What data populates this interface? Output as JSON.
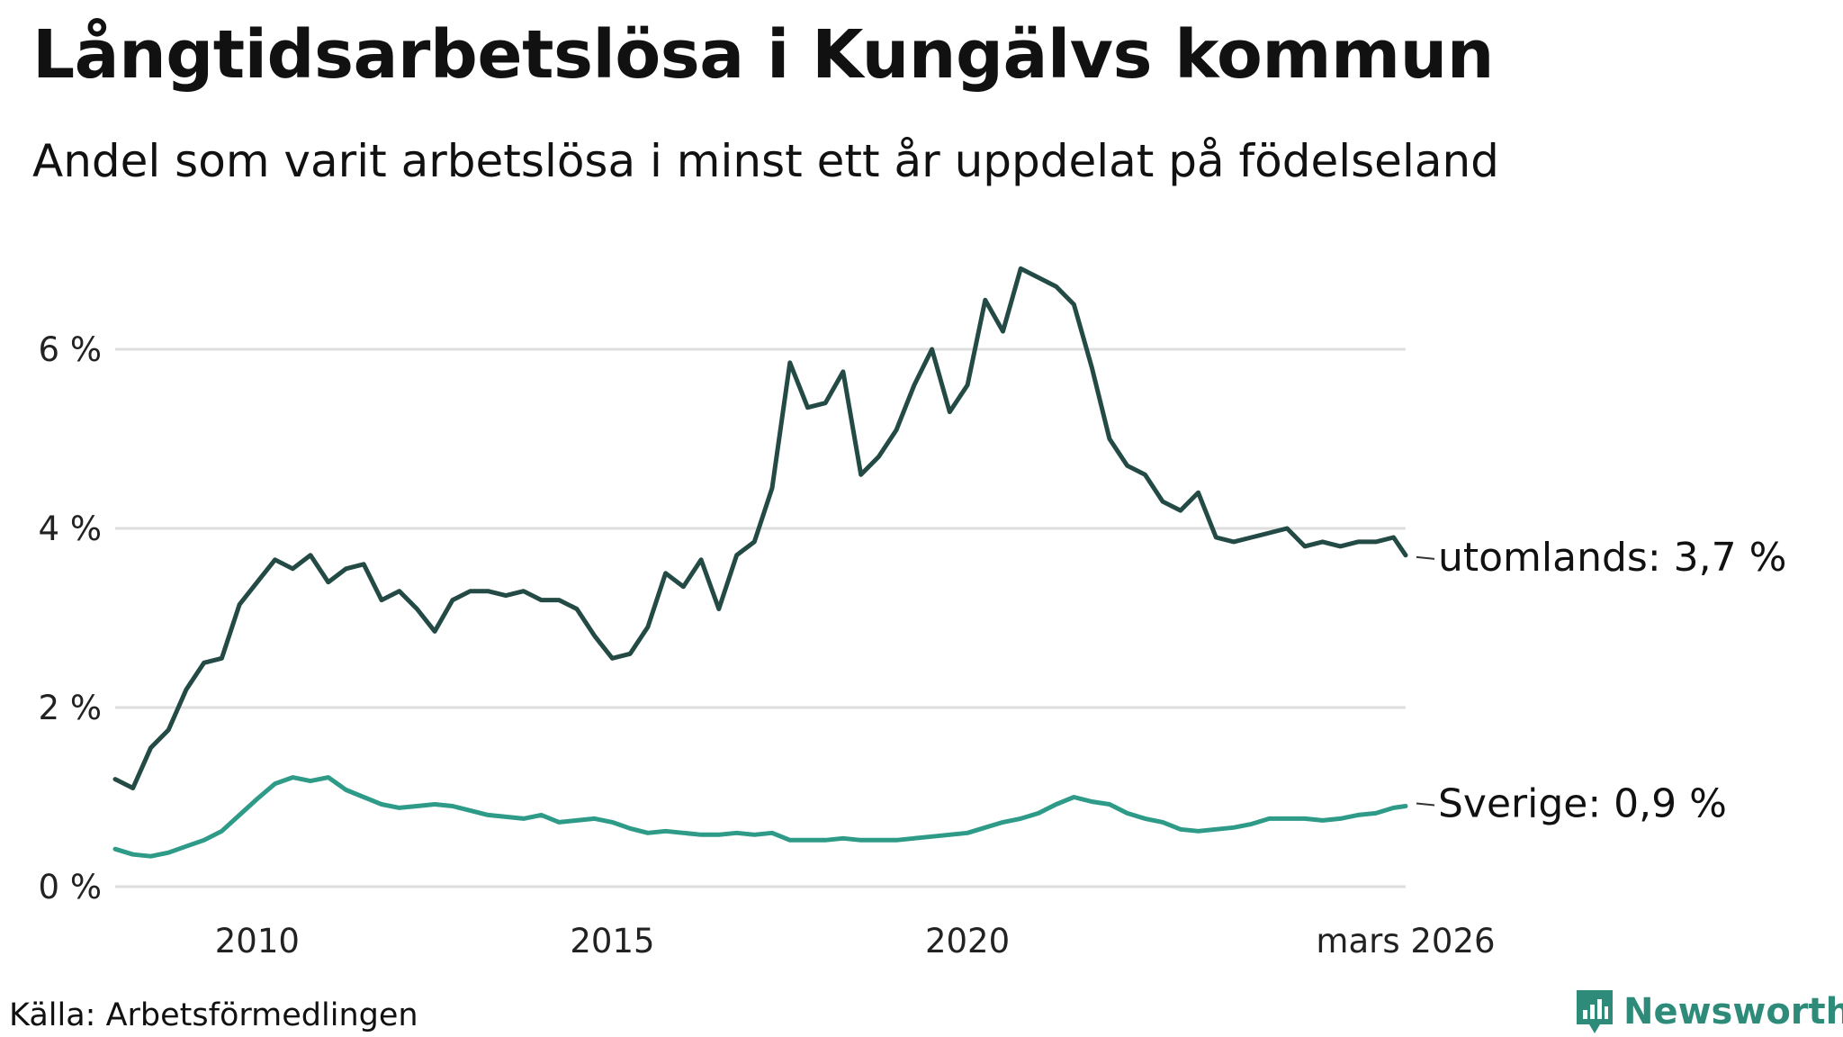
{
  "title": "Långtidsarbetslösa i Kungälvs kommun",
  "subtitle": "Andel som varit arbetslösa i minst ett år uppdelat på födelseland",
  "source": "Källa: Arbetsförmedlingen",
  "brand": {
    "name": "Newsworthy",
    "icon": "newsworthy-logo-icon",
    "color": "#2e8b7a"
  },
  "chart_data": {
    "type": "line",
    "title": "Långtidsarbetslösa i Kungälvs kommun",
    "subtitle": "Andel som varit arbetslösa i minst ett år uppdelat på födelseland",
    "ylabel": "",
    "xlabel": "",
    "ylim": [
      0,
      7
    ],
    "xlim": [
      2008.0,
      2026.17
    ],
    "yticks": [
      {
        "value": 0,
        "label": "0 %"
      },
      {
        "value": 2,
        "label": "2 %"
      },
      {
        "value": 4,
        "label": "4 %"
      },
      {
        "value": 6,
        "label": "6 %"
      }
    ],
    "xticks": [
      {
        "value": 2010,
        "label": "2010"
      },
      {
        "value": 2015,
        "label": "2015"
      },
      {
        "value": 2020,
        "label": "2020"
      },
      {
        "value": 2026.17,
        "label": "mars 2026"
      }
    ],
    "grid": true,
    "series": [
      {
        "name": "utomlands",
        "end_label": "utomlands: 3,7 %",
        "color": "#234a44",
        "x": [
          2008.0,
          2008.25,
          2008.5,
          2008.75,
          2009.0,
          2009.25,
          2009.5,
          2009.75,
          2010.0,
          2010.25,
          2010.5,
          2010.75,
          2011.0,
          2011.25,
          2011.5,
          2011.75,
          2012.0,
          2012.25,
          2012.5,
          2012.75,
          2013.0,
          2013.25,
          2013.5,
          2013.75,
          2014.0,
          2014.25,
          2014.5,
          2014.75,
          2015.0,
          2015.25,
          2015.5,
          2015.75,
          2016.0,
          2016.25,
          2016.5,
          2016.75,
          2017.0,
          2017.25,
          2017.5,
          2017.75,
          2018.0,
          2018.25,
          2018.5,
          2018.75,
          2019.0,
          2019.25,
          2019.5,
          2019.75,
          2020.0,
          2020.25,
          2020.5,
          2020.75,
          2021.0,
          2021.25,
          2021.5,
          2021.75,
          2022.0,
          2022.25,
          2022.5,
          2022.75,
          2023.0,
          2023.25,
          2023.5,
          2023.75,
          2024.0,
          2024.25,
          2024.5,
          2024.75,
          2025.0,
          2025.25,
          2025.5,
          2025.75,
          2026.0,
          2026.17
        ],
        "values": [
          1.2,
          1.1,
          1.55,
          1.75,
          2.2,
          2.5,
          2.55,
          3.15,
          3.4,
          3.65,
          3.55,
          3.7,
          3.4,
          3.55,
          3.6,
          3.2,
          3.3,
          3.1,
          2.85,
          3.2,
          3.3,
          3.3,
          3.25,
          3.3,
          3.2,
          3.2,
          3.1,
          2.8,
          2.55,
          2.6,
          2.9,
          3.5,
          3.35,
          3.65,
          3.1,
          3.7,
          3.85,
          4.45,
          5.85,
          5.35,
          5.4,
          5.75,
          4.6,
          4.8,
          5.1,
          5.6,
          6.0,
          5.3,
          5.6,
          6.55,
          6.2,
          6.9,
          6.8,
          6.7,
          6.5,
          5.8,
          5.0,
          4.7,
          4.6,
          4.3,
          4.2,
          4.4,
          3.9,
          3.85,
          3.9,
          3.95,
          4.0,
          3.8,
          3.85,
          3.8,
          3.85,
          3.85,
          3.9,
          3.7
        ]
      },
      {
        "name": "Sverige",
        "end_label": "Sverige: 0,9 %",
        "color": "#2e9a88",
        "x": [
          2008.0,
          2008.25,
          2008.5,
          2008.75,
          2009.0,
          2009.25,
          2009.5,
          2009.75,
          2010.0,
          2010.25,
          2010.5,
          2010.75,
          2011.0,
          2011.25,
          2011.5,
          2011.75,
          2012.0,
          2012.25,
          2012.5,
          2012.75,
          2013.0,
          2013.25,
          2013.5,
          2013.75,
          2014.0,
          2014.25,
          2014.5,
          2014.75,
          2015.0,
          2015.25,
          2015.5,
          2015.75,
          2016.0,
          2016.25,
          2016.5,
          2016.75,
          2017.0,
          2017.25,
          2017.5,
          2017.75,
          2018.0,
          2018.25,
          2018.5,
          2018.75,
          2019.0,
          2019.25,
          2019.5,
          2019.75,
          2020.0,
          2020.25,
          2020.5,
          2020.75,
          2021.0,
          2021.25,
          2021.5,
          2021.75,
          2022.0,
          2022.25,
          2022.5,
          2022.75,
          2023.0,
          2023.25,
          2023.5,
          2023.75,
          2024.0,
          2024.25,
          2024.5,
          2024.75,
          2025.0,
          2025.25,
          2025.5,
          2025.75,
          2026.0,
          2026.17
        ],
        "values": [
          0.42,
          0.36,
          0.34,
          0.38,
          0.45,
          0.52,
          0.62,
          0.8,
          0.98,
          1.15,
          1.22,
          1.18,
          1.22,
          1.08,
          1.0,
          0.92,
          0.88,
          0.9,
          0.92,
          0.9,
          0.85,
          0.8,
          0.78,
          0.76,
          0.8,
          0.72,
          0.74,
          0.76,
          0.72,
          0.65,
          0.6,
          0.62,
          0.6,
          0.58,
          0.58,
          0.6,
          0.58,
          0.6,
          0.52,
          0.52,
          0.52,
          0.54,
          0.52,
          0.52,
          0.52,
          0.54,
          0.56,
          0.58,
          0.6,
          0.66,
          0.72,
          0.76,
          0.82,
          0.92,
          1.0,
          0.95,
          0.92,
          0.82,
          0.76,
          0.72,
          0.64,
          0.62,
          0.64,
          0.66,
          0.7,
          0.76,
          0.76,
          0.76,
          0.74,
          0.76,
          0.8,
          0.82,
          0.88,
          0.9
        ]
      }
    ]
  }
}
